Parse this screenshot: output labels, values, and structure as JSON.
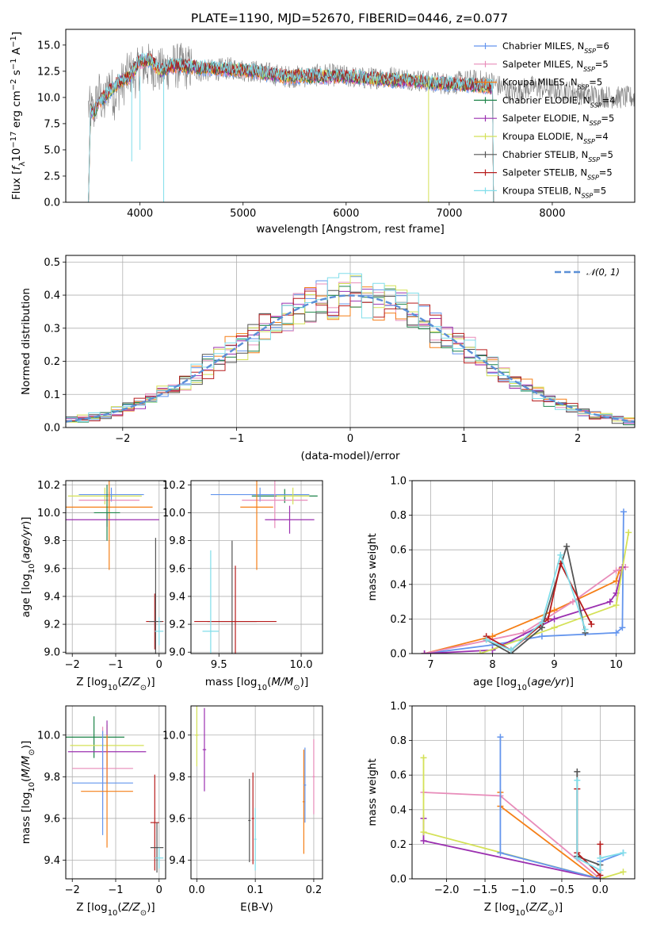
{
  "figure": {
    "title": "PLATE=1190, MJD=52670, FIBERID=0446, z=0.077"
  },
  "legend_spectrum": [
    {
      "label": "Chabrier MILES, N",
      "sub": "SSP",
      "tail": "=6",
      "color": "#6495ed"
    },
    {
      "label": "Salpeter MILES, N",
      "sub": "SSP",
      "tail": "=5",
      "color": "#e88cba"
    },
    {
      "label": "Kroupa MILES, N",
      "sub": "SSP",
      "tail": "=5",
      "color": "#f57f17"
    },
    {
      "label": "Chabrier ELODIE, N",
      "sub": "SSP",
      "tail": "=4",
      "color": "#1e8449"
    },
    {
      "label": "Salpeter ELODIE, N",
      "sub": "SSP",
      "tail": "=5",
      "color": "#9b30b0"
    },
    {
      "label": "Kroupa ELODIE, N",
      "sub": "SSP",
      "tail": "=4",
      "color": "#d4e157"
    },
    {
      "label": "Chabrier STELIB, N",
      "sub": "SSP",
      "tail": "=5",
      "color": "#555555"
    },
    {
      "label": "Salpeter STELIB, N",
      "sub": "SSP",
      "tail": "=5",
      "color": "#b71c1c"
    },
    {
      "label": "Kroupa STELIB, N",
      "sub": "SSP",
      "tail": "=5",
      "color": "#80deea"
    }
  ],
  "legend_hist": {
    "label": "𝒩(0, 1)",
    "color": "#5b8fd6"
  },
  "chart_data": [
    {
      "id": "spectrum",
      "type": "line",
      "xlabel": "wavelength [Angstrom, rest frame]",
      "ylabel_parts": [
        "Flux [",
        "f",
        "λ",
        "10",
        "−17",
        " erg cm",
        "−2",
        " s",
        "−1",
        " A",
        "−1",
        "]"
      ],
      "xlim": [
        3280,
        8800
      ],
      "ylim": [
        0,
        16.5
      ],
      "xticks": [
        4000,
        5000,
        6000,
        7000,
        8000
      ],
      "yticks": [
        0.0,
        2.5,
        5.0,
        7.5,
        10.0,
        12.5,
        15.0
      ],
      "grid": false,
      "series": [
        {
          "name": "observed",
          "color": "#7f7f7f",
          "x": [
            3500,
            3550,
            3600,
            3650,
            3700,
            3750,
            3800,
            3850,
            3900,
            3950,
            4000,
            4100,
            4200,
            4300,
            4400,
            4500,
            4600,
            4700,
            4800,
            4900,
            5000,
            5200,
            5400,
            5600,
            5800,
            6000,
            6200,
            6400,
            6600,
            6800,
            7000,
            7200,
            7400,
            7600,
            7800,
            8000,
            8200,
            8400,
            8600,
            8800
          ],
          "y": [
            9.0,
            8.5,
            10.5,
            9.0,
            11.5,
            10.0,
            11.0,
            11.5,
            12.5,
            12.0,
            13.0,
            13.0,
            12.5,
            13.0,
            13.0,
            12.8,
            12.5,
            12.6,
            12.7,
            12.8,
            12.6,
            12.4,
            12.0,
            12.0,
            12.2,
            12.0,
            11.8,
            12.0,
            11.8,
            11.5,
            11.3,
            11.6,
            11.5,
            10.5,
            11.0,
            10.8,
            10.5,
            10.2,
            10.0,
            10.0
          ]
        },
        {
          "name": "models",
          "color": "#80deea",
          "x": [
            3500,
            3550,
            3600,
            3700,
            3800,
            3900,
            4000,
            4100,
            4200,
            4300,
            4400,
            4600,
            4800,
            5000,
            5200,
            5400,
            5600,
            5800,
            6000,
            6200,
            6400,
            6600,
            6800,
            7000,
            7200,
            7400
          ],
          "y": [
            9.0,
            8.5,
            9.5,
            10.5,
            11.5,
            12.0,
            13.5,
            13.5,
            12.5,
            13.0,
            13.0,
            12.8,
            12.7,
            12.6,
            12.3,
            12.0,
            12.0,
            12.0,
            12.0,
            11.8,
            11.7,
            11.6,
            11.4,
            11.3,
            11.2,
            11.0
          ]
        }
      ]
    },
    {
      "id": "residual_hist",
      "type": "line",
      "xlabel": "(data-model)/error",
      "ylabel": "Normed distribution",
      "xlim": [
        -2.5,
        2.5
      ],
      "ylim": [
        0,
        0.52
      ],
      "xticks": [
        -2,
        -1,
        0,
        1,
        2
      ],
      "yticks": [
        0.0,
        0.1,
        0.2,
        0.3,
        0.4,
        0.5
      ],
      "grid": true,
      "bin_width": 0.1,
      "series": [
        {
          "name": "𝒩(0, 1)",
          "color": "#5b8fd6",
          "dashed": true,
          "gaussian": true
        }
      ]
    },
    {
      "id": "age_vs_Z",
      "type": "scatter",
      "xlabel": "Z [log10(Z/Z☉)]",
      "ylabel": "age [log10(age/yr)]",
      "xlim": [
        -2.15,
        0.15
      ],
      "ylim": [
        8.99,
        10.23
      ],
      "xticks": [
        -2,
        -1,
        0
      ],
      "yticks": [
        9.0,
        9.2,
        9.4,
        9.6,
        9.8,
        10.0,
        10.2
      ],
      "grid": true
    },
    {
      "id": "age_vs_mass",
      "type": "scatter",
      "xlabel": "mass [log10(M/M☉)]",
      "ylabel": "",
      "xlim": [
        9.33,
        10.13
      ],
      "ylim": [
        8.99,
        10.23
      ],
      "xticks": [
        9.5,
        10.0
      ],
      "yticks": [
        9.0,
        9.2,
        9.4,
        9.6,
        9.8,
        10.0,
        10.2
      ],
      "grid": true
    },
    {
      "id": "massweight_vs_age",
      "type": "line",
      "xlabel": "age [log10(age/yr)]",
      "ylabel": "mass weight",
      "xlim": [
        6.7,
        10.3
      ],
      "ylim": [
        0,
        1.0
      ],
      "xticks": [
        7,
        8,
        9,
        10
      ],
      "yticks": [
        0.0,
        0.2,
        0.4,
        0.6,
        0.8,
        1.0
      ],
      "grid": true,
      "series": [
        {
          "name": "Chabrier MILES",
          "color": "#6495ed",
          "x": [
            6.9,
            8.0,
            8.8,
            10.0,
            10.1,
            10.12
          ],
          "y": [
            0.0,
            0.05,
            0.1,
            0.12,
            0.15,
            0.82
          ]
        },
        {
          "name": "Kroupa MILES",
          "color": "#f57f17",
          "x": [
            6.9,
            8.0,
            9.0,
            10.0,
            10.05
          ],
          "y": [
            0.0,
            0.1,
            0.25,
            0.42,
            0.48
          ]
        },
        {
          "name": "Salpeter MILES",
          "color": "#e88cba",
          "x": [
            6.9,
            8.5,
            9.3,
            10.0,
            10.15
          ],
          "y": [
            0.0,
            0.12,
            0.3,
            0.48,
            0.5
          ]
        },
        {
          "name": "Salpeter ELODIE",
          "color": "#9b30b0",
          "x": [
            6.9,
            8.0,
            9.0,
            9.9,
            10.0,
            10.1
          ],
          "y": [
            0.0,
            0.02,
            0.2,
            0.3,
            0.35,
            0.5
          ]
        },
        {
          "name": "Kroupa ELODIE",
          "color": "#d4e157",
          "x": [
            7.8,
            9.0,
            10.0,
            10.2
          ],
          "y": [
            0.0,
            0.15,
            0.28,
            0.7
          ]
        },
        {
          "name": "Chabrier STELIB",
          "color": "#555555",
          "x": [
            7.9,
            8.3,
            8.8,
            9.2,
            9.5
          ],
          "y": [
            0.08,
            0.0,
            0.15,
            0.62,
            0.12
          ]
        },
        {
          "name": "Salpeter STELIB",
          "color": "#b71c1c",
          "x": [
            7.9,
            8.3,
            8.9,
            9.1,
            9.6
          ],
          "y": [
            0.1,
            0.02,
            0.2,
            0.52,
            0.17
          ]
        },
        {
          "name": "Kroupa STELIB",
          "color": "#80deea",
          "x": [
            7.9,
            8.3,
            8.8,
            9.1,
            9.5
          ],
          "y": [
            0.08,
            0.02,
            0.18,
            0.57,
            0.14
          ]
        }
      ]
    },
    {
      "id": "mass_vs_Z",
      "type": "scatter",
      "xlabel": "Z [log10(Z/Z☉)]",
      "ylabel": "mass [log10(M/M☉)]",
      "xlim": [
        -2.15,
        0.15
      ],
      "ylim": [
        9.31,
        10.14
      ],
      "xticks": [
        -2,
        -1,
        0
      ],
      "yticks": [
        9.4,
        9.6,
        9.8,
        10.0
      ],
      "grid": true
    },
    {
      "id": "mass_vs_EBV",
      "type": "scatter",
      "xlabel": "E(B-V)",
      "ylabel": "",
      "xlim": [
        -0.01,
        0.215
      ],
      "ylim": [
        9.31,
        10.14
      ],
      "xticks": [
        0.0,
        0.1,
        0.2
      ],
      "yticks": [
        9.4,
        9.6,
        9.8,
        10.0
      ],
      "grid": true
    },
    {
      "id": "massweight_vs_Z",
      "type": "line",
      "xlabel": "Z [log10(Z/Z☉)]",
      "ylabel": "mass weight",
      "xlim": [
        -2.45,
        0.45
      ],
      "ylim": [
        0,
        1.0
      ],
      "xticks": [
        -2.0,
        -1.5,
        -1.0,
        -0.5,
        0.0
      ],
      "yticks": [
        0.0,
        0.2,
        0.4,
        0.6,
        0.8,
        1.0
      ],
      "grid": true,
      "series": [
        {
          "name": "Salpeter MILES",
          "color": "#e88cba",
          "x": [
            -2.3,
            -1.3,
            0.0
          ],
          "y": [
            0.5,
            0.48,
            0.0
          ]
        },
        {
          "name": "Kroupa MILES",
          "color": "#f57f17",
          "x": [
            -1.3,
            -1.3,
            -0.05
          ],
          "y": [
            0.5,
            0.42,
            0.0
          ]
        },
        {
          "name": "Salpeter ELODIE",
          "color": "#9b30b0",
          "x": [
            -2.3,
            -2.3,
            0.0
          ],
          "y": [
            0.35,
            0.22,
            0.0
          ]
        },
        {
          "name": "Kroupa ELODIE",
          "color": "#d4e157",
          "x": [
            -2.3,
            -2.3,
            0.0,
            0.3
          ],
          "y": [
            0.7,
            0.27,
            0.0,
            0.04
          ]
        },
        {
          "name": "Chabrier MILES",
          "color": "#6495ed",
          "x": [
            -1.3,
            -1.3,
            0.0,
            0.0,
            0.3
          ],
          "y": [
            0.82,
            0.15,
            0.0,
            0.1,
            0.15
          ]
        },
        {
          "name": "Chabrier STELIB",
          "color": "#555555",
          "x": [
            -0.3,
            -0.3,
            0.0
          ],
          "y": [
            0.62,
            0.13,
            0.08
          ]
        },
        {
          "name": "Salpeter STELIB",
          "color": "#b71c1c",
          "x": [
            -0.3,
            -0.3,
            0.0,
            0.0
          ],
          "y": [
            0.52,
            0.15,
            0.02,
            0.2
          ]
        },
        {
          "name": "Kroupa STELIB",
          "color": "#80deea",
          "x": [
            -0.3,
            -0.3,
            0.0,
            0.0,
            0.3
          ],
          "y": [
            0.57,
            0.12,
            0.05,
            0.12,
            0.15
          ]
        }
      ]
    }
  ]
}
